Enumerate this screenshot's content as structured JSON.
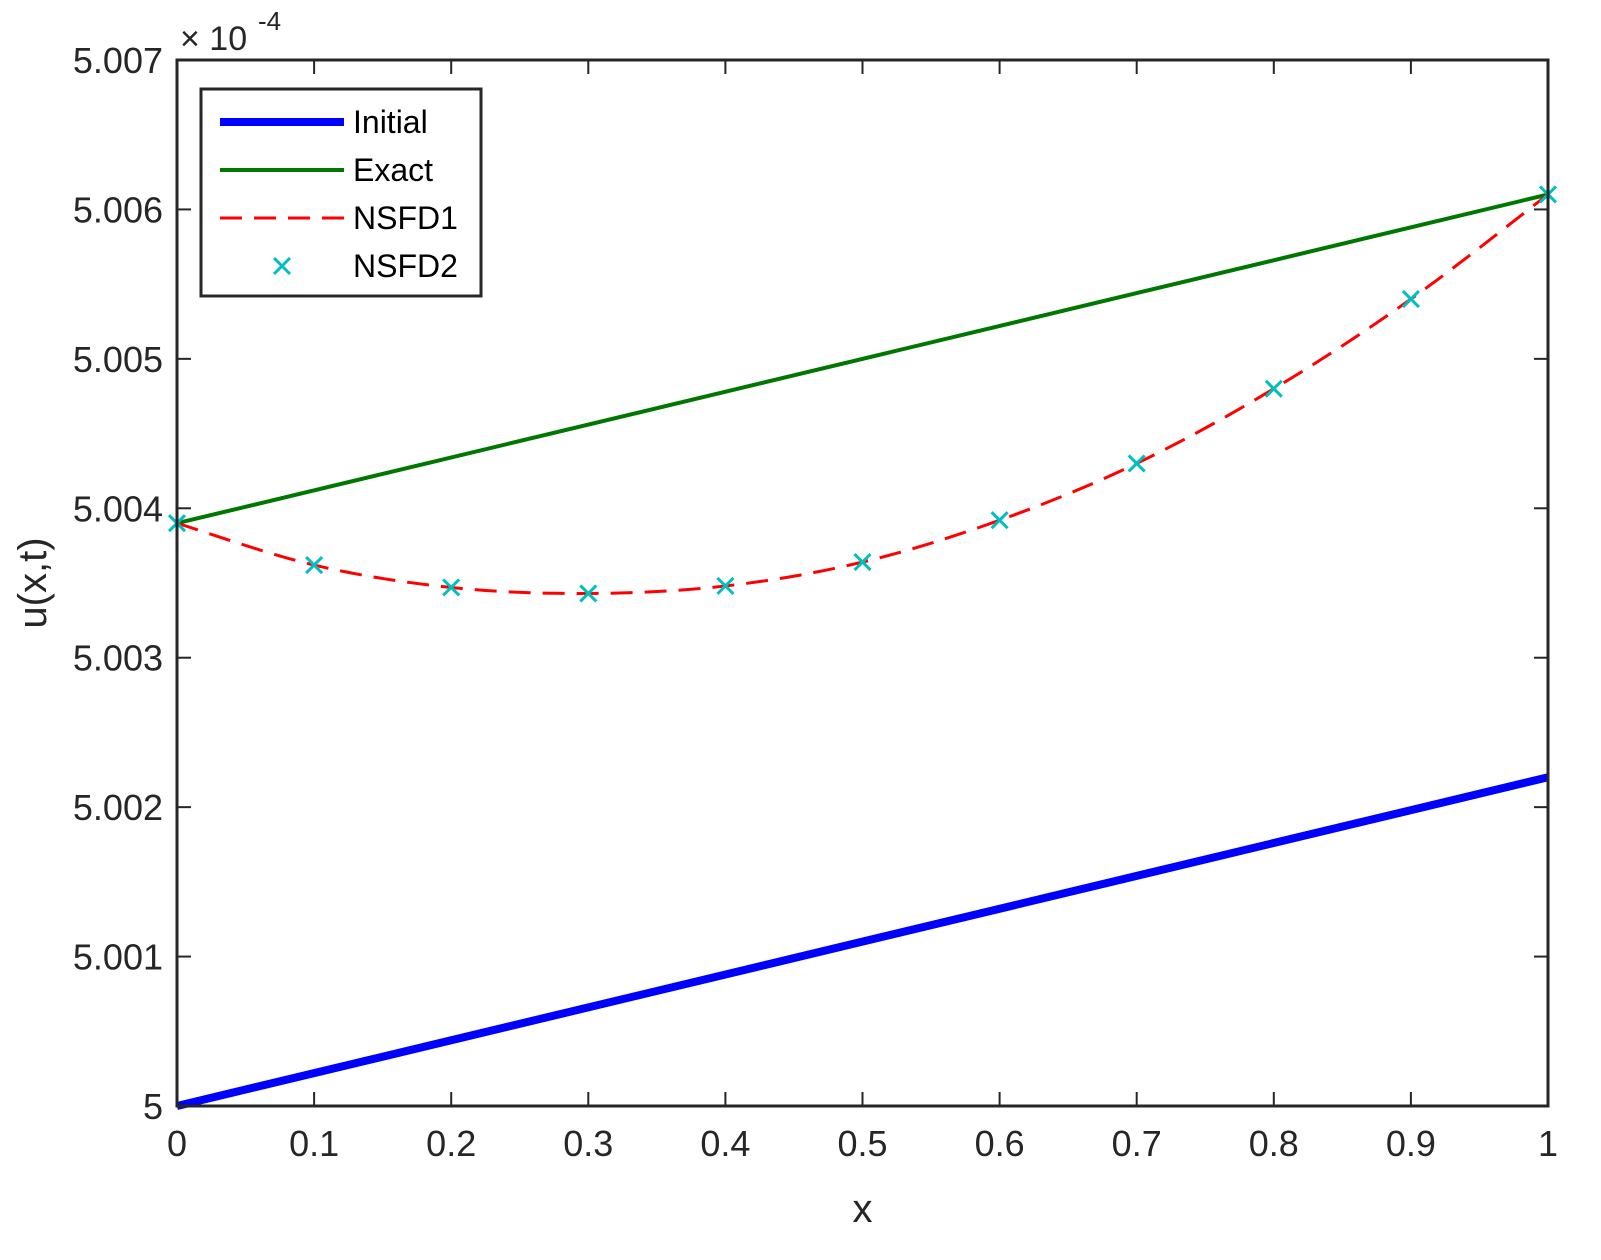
{
  "chart_data": {
    "type": "line",
    "xlabel": "x",
    "ylabel": "u(x,t)",
    "xlim": [
      0,
      1
    ],
    "ylim": [
      5.0,
      5.007
    ],
    "y_multiplier_label": "× 10",
    "y_multiplier_exponent": "-4",
    "x_ticks": [
      0,
      0.1,
      0.2,
      0.3,
      0.4,
      0.5,
      0.6,
      0.7,
      0.8,
      0.9,
      1
    ],
    "x_tick_labels": [
      "0",
      "0.1",
      "0.2",
      "0.3",
      "0.4",
      "0.5",
      "0.6",
      "0.7",
      "0.8",
      "0.9",
      "1"
    ],
    "y_ticks": [
      5.0,
      5.001,
      5.002,
      5.003,
      5.004,
      5.005,
      5.006,
      5.007
    ],
    "y_tick_labels": [
      "5",
      "5.001",
      "5.002",
      "5.003",
      "5.004",
      "5.005",
      "5.006",
      "5.007"
    ],
    "grid": false,
    "legend_position": "top-left",
    "series": [
      {
        "name": "Initial",
        "style": "solid-thick",
        "color": "#0000ff",
        "x": [
          0,
          1
        ],
        "y": [
          5.0,
          5.0022
        ]
      },
      {
        "name": "Exact",
        "style": "solid",
        "color": "#007700",
        "x": [
          0,
          1
        ],
        "y": [
          5.0039,
          5.0061
        ]
      },
      {
        "name": "NSFD1",
        "style": "dashed",
        "color": "#ff0000",
        "x": [
          0,
          0.1,
          0.2,
          0.3,
          0.4,
          0.5,
          0.6,
          0.7,
          0.8,
          0.9,
          1
        ],
        "y": [
          5.0039,
          5.00362,
          5.00347,
          5.00343,
          5.00348,
          5.00364,
          5.00392,
          5.0043,
          5.0048,
          5.0054,
          5.0061
        ]
      },
      {
        "name": "NSFD2",
        "style": "markers-x",
        "color": "#00bfbf",
        "x": [
          0,
          0.1,
          0.2,
          0.3,
          0.4,
          0.5,
          0.6,
          0.7,
          0.8,
          0.9,
          1
        ],
        "y": [
          5.0039,
          5.00362,
          5.00347,
          5.00343,
          5.00348,
          5.00364,
          5.00392,
          5.0043,
          5.0048,
          5.0054,
          5.0061
        ]
      }
    ]
  }
}
